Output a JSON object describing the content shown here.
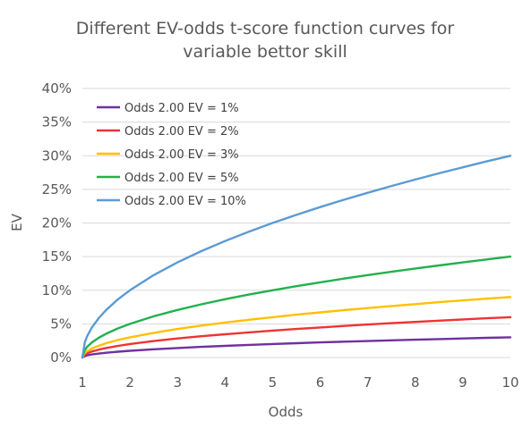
{
  "chart_data": {
    "type": "line",
    "title_lines": [
      "Different EV-odds t-score function curves for",
      "variable bettor skill"
    ],
    "xlabel": "Odds",
    "ylabel": "EV",
    "xlim": [
      1,
      10
    ],
    "ylim": [
      0,
      0.4
    ],
    "x_ticks": [
      "1",
      "2",
      "3",
      "4",
      "5",
      "6",
      "7",
      "8",
      "9",
      "10"
    ],
    "y_ticks": [
      "0%",
      "5%",
      "10%",
      "15%",
      "20%",
      "25%",
      "30%",
      "35%",
      "40%"
    ],
    "grid": "horizontal",
    "legend_position": "top-left",
    "x": [
      1.0,
      1.05,
      1.1,
      1.2,
      1.35,
      1.5,
      1.75,
      2,
      2.5,
      3,
      3.5,
      4,
      4.5,
      5,
      5.5,
      6,
      6.5,
      7,
      7.5,
      8,
      8.5,
      9,
      9.5,
      10
    ],
    "series": [
      {
        "name": "Odds 2.00 EV = 1%",
        "color": "#7030a0",
        "values": [
          0.0,
          0.0022,
          0.0032,
          0.0045,
          0.0059,
          0.0071,
          0.0087,
          0.01,
          0.0122,
          0.0141,
          0.0158,
          0.0173,
          0.0187,
          0.02,
          0.0212,
          0.0224,
          0.0235,
          0.0245,
          0.0255,
          0.0265,
          0.0274,
          0.0283,
          0.0292,
          0.03
        ]
      },
      {
        "name": "Odds 2.00 EV = 2%",
        "color": "#ee3333",
        "values": [
          0.0,
          0.0045,
          0.0063,
          0.0089,
          0.0118,
          0.0141,
          0.0173,
          0.02,
          0.0245,
          0.0283,
          0.0316,
          0.0346,
          0.0374,
          0.04,
          0.0424,
          0.0447,
          0.0469,
          0.049,
          0.051,
          0.0529,
          0.0548,
          0.0566,
          0.0583,
          0.06
        ]
      },
      {
        "name": "Odds 2.00 EV = 3%",
        "color": "#ffc000",
        "values": [
          0.0,
          0.0067,
          0.0095,
          0.0134,
          0.0177,
          0.0212,
          0.026,
          0.03,
          0.0367,
          0.0424,
          0.0474,
          0.052,
          0.0561,
          0.06,
          0.0636,
          0.0671,
          0.0704,
          0.0735,
          0.0765,
          0.0794,
          0.0822,
          0.0849,
          0.0875,
          0.09
        ]
      },
      {
        "name": "Odds 2.00 EV = 5%",
        "color": "#22b14c",
        "values": [
          0.0,
          0.0112,
          0.0158,
          0.0224,
          0.0296,
          0.0354,
          0.0433,
          0.05,
          0.0612,
          0.0707,
          0.0791,
          0.0866,
          0.0935,
          0.1,
          0.1061,
          0.1118,
          0.1173,
          0.1225,
          0.1275,
          0.1323,
          0.1369,
          0.1414,
          0.1458,
          0.15
        ]
      },
      {
        "name": "Odds 2.00 EV = 10%",
        "color": "#5b9bd5",
        "values": [
          0.0,
          0.0224,
          0.0316,
          0.0447,
          0.0592,
          0.0707,
          0.0866,
          0.1,
          0.1225,
          0.1414,
          0.1581,
          0.1732,
          0.1871,
          0.2,
          0.2121,
          0.2236,
          0.2345,
          0.2449,
          0.255,
          0.2646,
          0.2739,
          0.2828,
          0.2915,
          0.3
        ]
      }
    ]
  }
}
